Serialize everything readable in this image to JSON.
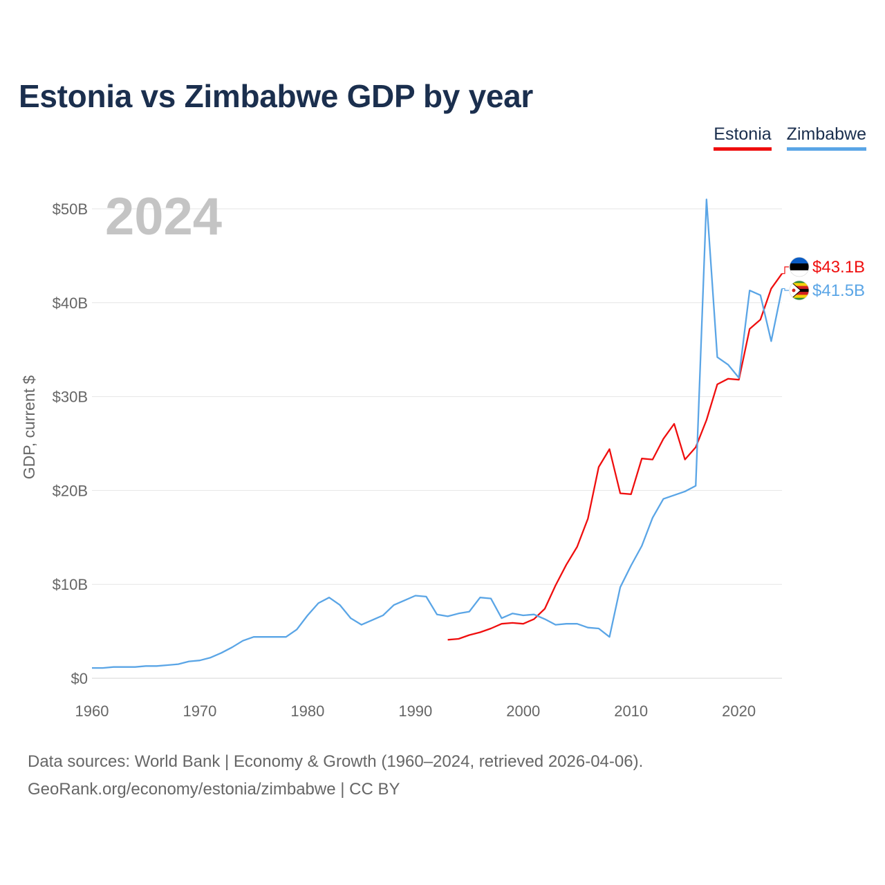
{
  "title": "Estonia vs Zimbabwe GDP by year",
  "legend": [
    {
      "label": "Estonia",
      "color": "#ef0e0e"
    },
    {
      "label": "Zimbabwe",
      "color": "#5aa5e6"
    }
  ],
  "sources": {
    "line1": "Data sources: World Bank | Economy & Growth (1960–2024, retrieved 2026-04-06).",
    "line2": "GeoRank.org/economy/estonia/zimbabwe | CC BY"
  },
  "chart_data": {
    "type": "line",
    "title": "Estonia vs Zimbabwe GDP by year",
    "ylabel": "GDP, current $",
    "xlabel": "",
    "year_label": "2024",
    "xlim": [
      1960,
      2024
    ],
    "ylim": [
      0,
      50
    ],
    "x_ticks": [
      1960,
      1970,
      1980,
      1990,
      2000,
      2010,
      2020
    ],
    "y_ticks": [
      {
        "value": 0,
        "label": "$0"
      },
      {
        "value": 10,
        "label": "$10B"
      },
      {
        "value": 20,
        "label": "$20B"
      },
      {
        "value": 30,
        "label": "$30B"
      },
      {
        "value": 40,
        "label": "$40B"
      },
      {
        "value": 50,
        "label": "$50B"
      }
    ],
    "grid": true,
    "legend_position": "top-right",
    "series": [
      {
        "name": "Estonia",
        "color": "#ef0e0e",
        "end_label": "$43.1B",
        "x": [
          1993,
          1994,
          1995,
          1996,
          1997,
          1998,
          1999,
          2000,
          2001,
          2002,
          2003,
          2004,
          2005,
          2006,
          2007,
          2008,
          2009,
          2010,
          2011,
          2012,
          2013,
          2014,
          2015,
          2016,
          2017,
          2018,
          2019,
          2020,
          2021,
          2022,
          2023,
          2024
        ],
        "values": [
          4.1,
          4.2,
          4.6,
          4.9,
          5.3,
          5.8,
          5.9,
          5.8,
          6.3,
          7.4,
          9.9,
          12.1,
          14.0,
          17.0,
          22.5,
          24.4,
          19.7,
          19.6,
          23.4,
          23.3,
          25.5,
          27.1,
          23.3,
          24.6,
          27.5,
          31.3,
          31.9,
          31.8,
          37.2,
          38.2,
          41.5,
          43.1
        ]
      },
      {
        "name": "Zimbabwe",
        "color": "#5aa5e6",
        "end_label": "$41.5B",
        "x": [
          1960,
          1961,
          1962,
          1963,
          1964,
          1965,
          1966,
          1967,
          1968,
          1969,
          1970,
          1971,
          1972,
          1973,
          1974,
          1975,
          1976,
          1977,
          1978,
          1979,
          1980,
          1981,
          1982,
          1983,
          1984,
          1985,
          1986,
          1987,
          1988,
          1989,
          1990,
          1991,
          1992,
          1993,
          1994,
          1995,
          1996,
          1997,
          1998,
          1999,
          2000,
          2001,
          2002,
          2003,
          2004,
          2005,
          2006,
          2007,
          2008,
          2009,
          2010,
          2011,
          2012,
          2013,
          2014,
          2015,
          2016,
          2017,
          2018,
          2019,
          2020,
          2021,
          2022,
          2023,
          2024
        ],
        "values": [
          1.1,
          1.1,
          1.2,
          1.2,
          1.2,
          1.3,
          1.3,
          1.4,
          1.5,
          1.8,
          1.9,
          2.2,
          2.7,
          3.3,
          4.0,
          4.4,
          4.4,
          4.4,
          4.4,
          5.2,
          6.7,
          8.0,
          8.6,
          7.8,
          6.4,
          5.7,
          6.2,
          6.7,
          7.8,
          8.3,
          8.8,
          8.7,
          6.8,
          6.6,
          6.9,
          7.1,
          8.6,
          8.5,
          6.4,
          6.9,
          6.7,
          6.8,
          6.3,
          5.7,
          5.8,
          5.8,
          5.4,
          5.3,
          4.4,
          9.7,
          12.0,
          14.1,
          17.1,
          19.1,
          19.5,
          19.9,
          20.5,
          51.0,
          34.2,
          33.4,
          32.0,
          41.3,
          40.8,
          35.9,
          41.5
        ]
      }
    ]
  }
}
